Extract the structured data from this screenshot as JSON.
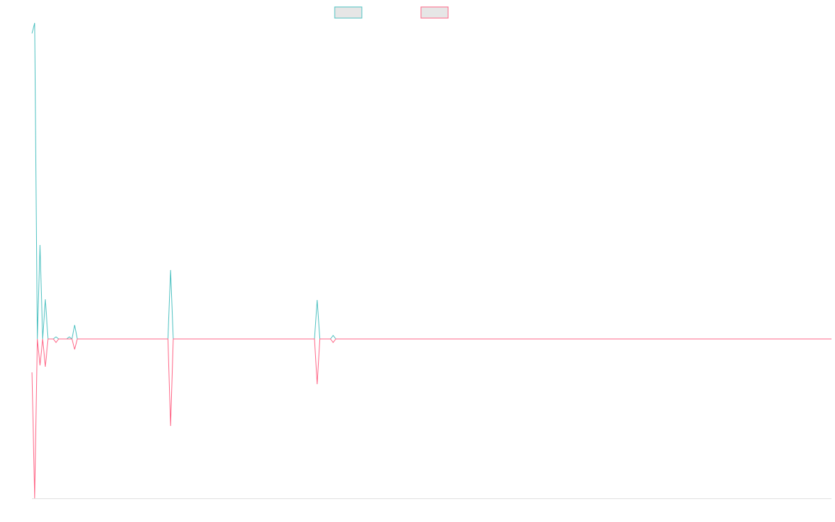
{
  "chart_data": {
    "type": "line",
    "x": [
      0,
      1,
      2,
      3,
      4,
      5,
      6,
      8,
      9,
      10,
      13,
      14,
      15,
      16,
      17,
      51,
      52,
      53,
      106,
      107,
      108,
      112,
      113,
      114,
      300
    ],
    "xlim": [
      0,
      300
    ],
    "ylim": [
      -229,
      454
    ],
    "series": [
      {
        "color": "#4bc0c0",
        "values": [
          439,
          454,
          0,
          135,
          0,
          57,
          0,
          0,
          3,
          0,
          0,
          3,
          0,
          20,
          0,
          0,
          99,
          0,
          0,
          56,
          0,
          0,
          5,
          0,
          0
        ]
      },
      {
        "color": "#ff6384",
        "values": [
          -48,
          -229,
          0,
          -38,
          0,
          -40,
          0,
          0,
          -5,
          0,
          0,
          0,
          0,
          -15,
          0,
          0,
          -125,
          0,
          0,
          -65,
          0,
          0,
          -5,
          0,
          0
        ]
      }
    ]
  }
}
